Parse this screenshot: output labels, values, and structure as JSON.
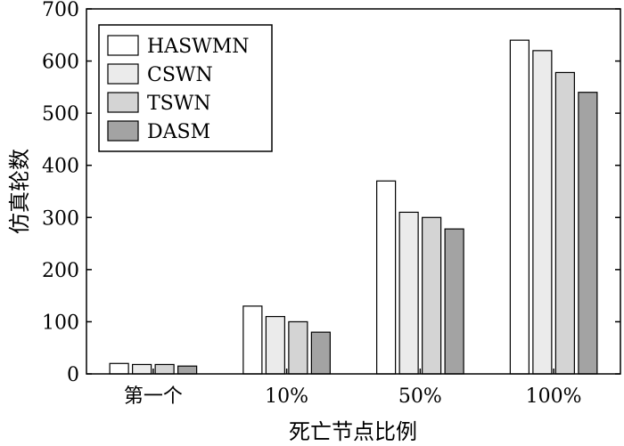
{
  "chart_data": {
    "type": "bar",
    "title": "",
    "xlabel": "死亡节点比例",
    "ylabel": "仿真轮数",
    "categories": [
      "第一个",
      "10%",
      "50%",
      "100%"
    ],
    "ylim": [
      0,
      700
    ],
    "yticks": [
      0,
      100,
      200,
      300,
      400,
      500,
      600,
      700
    ],
    "grid": false,
    "legend_position": "top-left",
    "series": [
      {
        "name": "HASWMN",
        "color": "#ffffff",
        "values": [
          20,
          130,
          370,
          640
        ]
      },
      {
        "name": "CSWN",
        "color": "#ebebeb",
        "values": [
          18,
          110,
          310,
          620
        ]
      },
      {
        "name": "TSWN",
        "color": "#d4d4d4",
        "values": [
          18,
          100,
          300,
          578
        ]
      },
      {
        "name": "DASM",
        "color": "#a3a3a3",
        "values": [
          15,
          80,
          278,
          540
        ]
      }
    ]
  }
}
